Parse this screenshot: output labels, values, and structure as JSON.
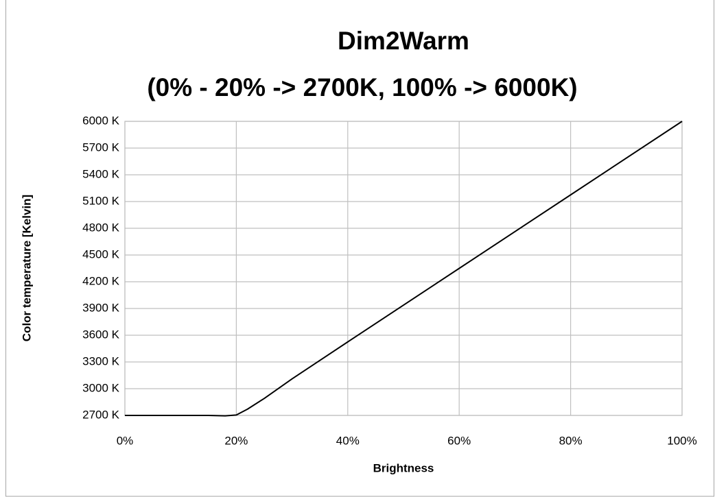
{
  "chart_data": {
    "type": "line",
    "title": "Dim2Warm",
    "subtitle": "(0% - 20% -> 2700K, 100% -> 6000K)",
    "x_label": "Brightness",
    "y_label": "Color temperature [Kelvin]",
    "x": [
      0,
      10,
      15,
      18,
      20,
      22,
      25,
      30,
      40,
      60,
      80,
      100
    ],
    "series": [
      {
        "name": "Color temperature",
        "color": "#000000",
        "values": [
          2700,
          2700,
          2700,
          2695,
          2705,
          2770,
          2890,
          3110,
          3525,
          4350,
          5175,
          6000
        ]
      }
    ],
    "xlim": [
      0,
      100
    ],
    "xticks": [
      {
        "value": 0,
        "label": "0%"
      },
      {
        "value": 20,
        "label": "20%"
      },
      {
        "value": 40,
        "label": "40%"
      },
      {
        "value": 60,
        "label": "60%"
      },
      {
        "value": 80,
        "label": "80%"
      },
      {
        "value": 100,
        "label": "100%"
      }
    ],
    "ylim": [
      2700,
      6000
    ],
    "yticks": [
      {
        "value": 2700,
        "label": "2700 K"
      },
      {
        "value": 3000,
        "label": "3000 K"
      },
      {
        "value": 3300,
        "label": "3300 K"
      },
      {
        "value": 3600,
        "label": "3600 K"
      },
      {
        "value": 3900,
        "label": "3900 K"
      },
      {
        "value": 4200,
        "label": "4200 K"
      },
      {
        "value": 4500,
        "label": "4500 K"
      },
      {
        "value": 4800,
        "label": "4800 K"
      },
      {
        "value": 5100,
        "label": "5100 K"
      },
      {
        "value": 5400,
        "label": "5400 K"
      },
      {
        "value": 5700,
        "label": "5700 K"
      },
      {
        "value": 6000,
        "label": "6000 K"
      }
    ],
    "grid": true
  }
}
